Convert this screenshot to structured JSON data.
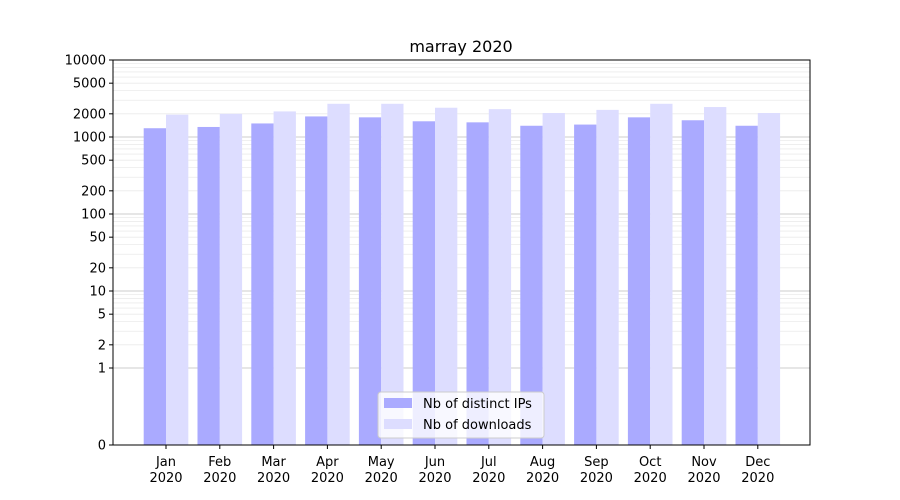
{
  "chart_data": {
    "type": "bar",
    "title": "marray 2020",
    "xlabel": "",
    "ylabel": "",
    "yscale": "symlog",
    "ylim": [
      0,
      10000
    ],
    "yticks": [
      0,
      1,
      2,
      5,
      10,
      20,
      50,
      100,
      200,
      500,
      1000,
      2000,
      5000,
      10000
    ],
    "ytick_labels": [
      "0",
      "1",
      "2",
      "5",
      "10",
      "20",
      "50",
      "100",
      "200",
      "500",
      "1000",
      "2000",
      "5000",
      "10000"
    ],
    "categories": [
      "Jan",
      "Feb",
      "Mar",
      "Apr",
      "May",
      "Jun",
      "Jul",
      "Aug",
      "Sep",
      "Oct",
      "Nov",
      "Dec"
    ],
    "category_year": "2020",
    "grid": true,
    "legend_position": "bottom-center",
    "series": [
      {
        "name": "Nb of distinct IPs",
        "color": "#aaaaff",
        "values": [
          1300,
          1350,
          1500,
          1850,
          1800,
          1600,
          1550,
          1400,
          1450,
          1800,
          1650,
          1400
        ]
      },
      {
        "name": "Nb of downloads",
        "color": "#ddddff",
        "values": [
          1950,
          2000,
          2150,
          2700,
          2700,
          2400,
          2300,
          2050,
          2250,
          2700,
          2450,
          2050
        ]
      }
    ]
  }
}
